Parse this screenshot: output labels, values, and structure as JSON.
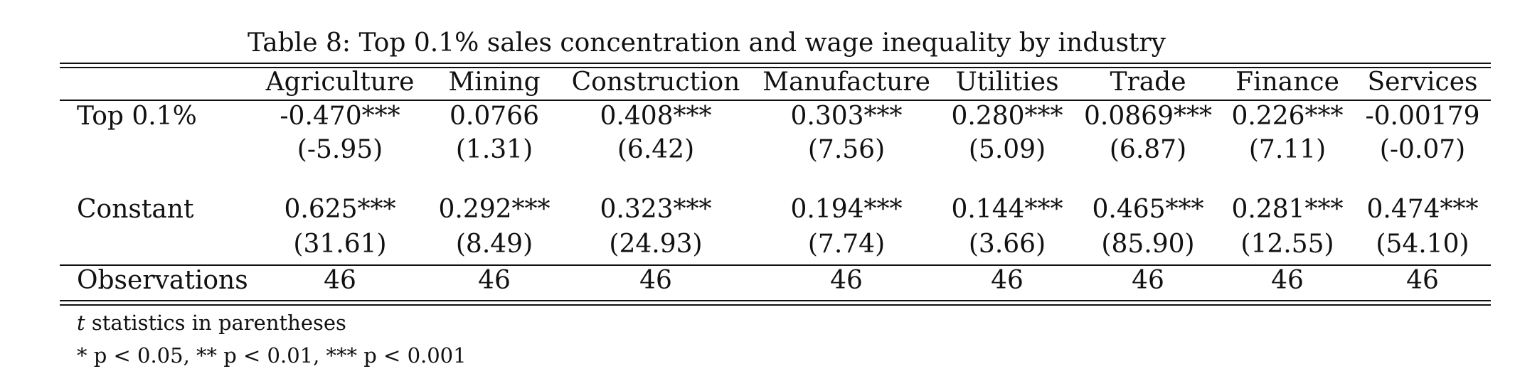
{
  "caption": "Table 8: Top 0.1% sales concentration and wage inequality by industry",
  "columns": [
    "Agriculture",
    "Mining",
    "Construction",
    "Manufacture",
    "Utilities",
    "Trade",
    "Finance",
    "Services"
  ],
  "rows": {
    "top": {
      "label": "Top 0.1%",
      "coef": [
        "-0.470***",
        "0.0766",
        "0.408***",
        "0.303***",
        "0.280***",
        "0.0869***",
        "0.226***",
        "-0.00179"
      ],
      "tstat": [
        "(-5.95)",
        "(1.31)",
        "(6.42)",
        "(7.56)",
        "(5.09)",
        "(6.87)",
        "(7.11)",
        "(-0.07)"
      ]
    },
    "constant": {
      "label": "Constant",
      "coef": [
        "0.625***",
        "0.292***",
        "0.323***",
        "0.194***",
        "0.144***",
        "0.465***",
        "0.281***",
        "0.474***"
      ],
      "tstat": [
        "(31.61)",
        "(8.49)",
        "(24.93)",
        "(7.74)",
        "(3.66)",
        "(85.90)",
        "(12.55)",
        "(54.10)"
      ]
    },
    "observations": {
      "label": "Observations",
      "values": [
        "46",
        "46",
        "46",
        "46",
        "46",
        "46",
        "46",
        "46"
      ]
    }
  },
  "notes": {
    "note1_var": "t",
    "note1_rest": " statistics in parentheses",
    "note2": "* p < 0.05, ** p < 0.01, *** p < 0.001"
  }
}
